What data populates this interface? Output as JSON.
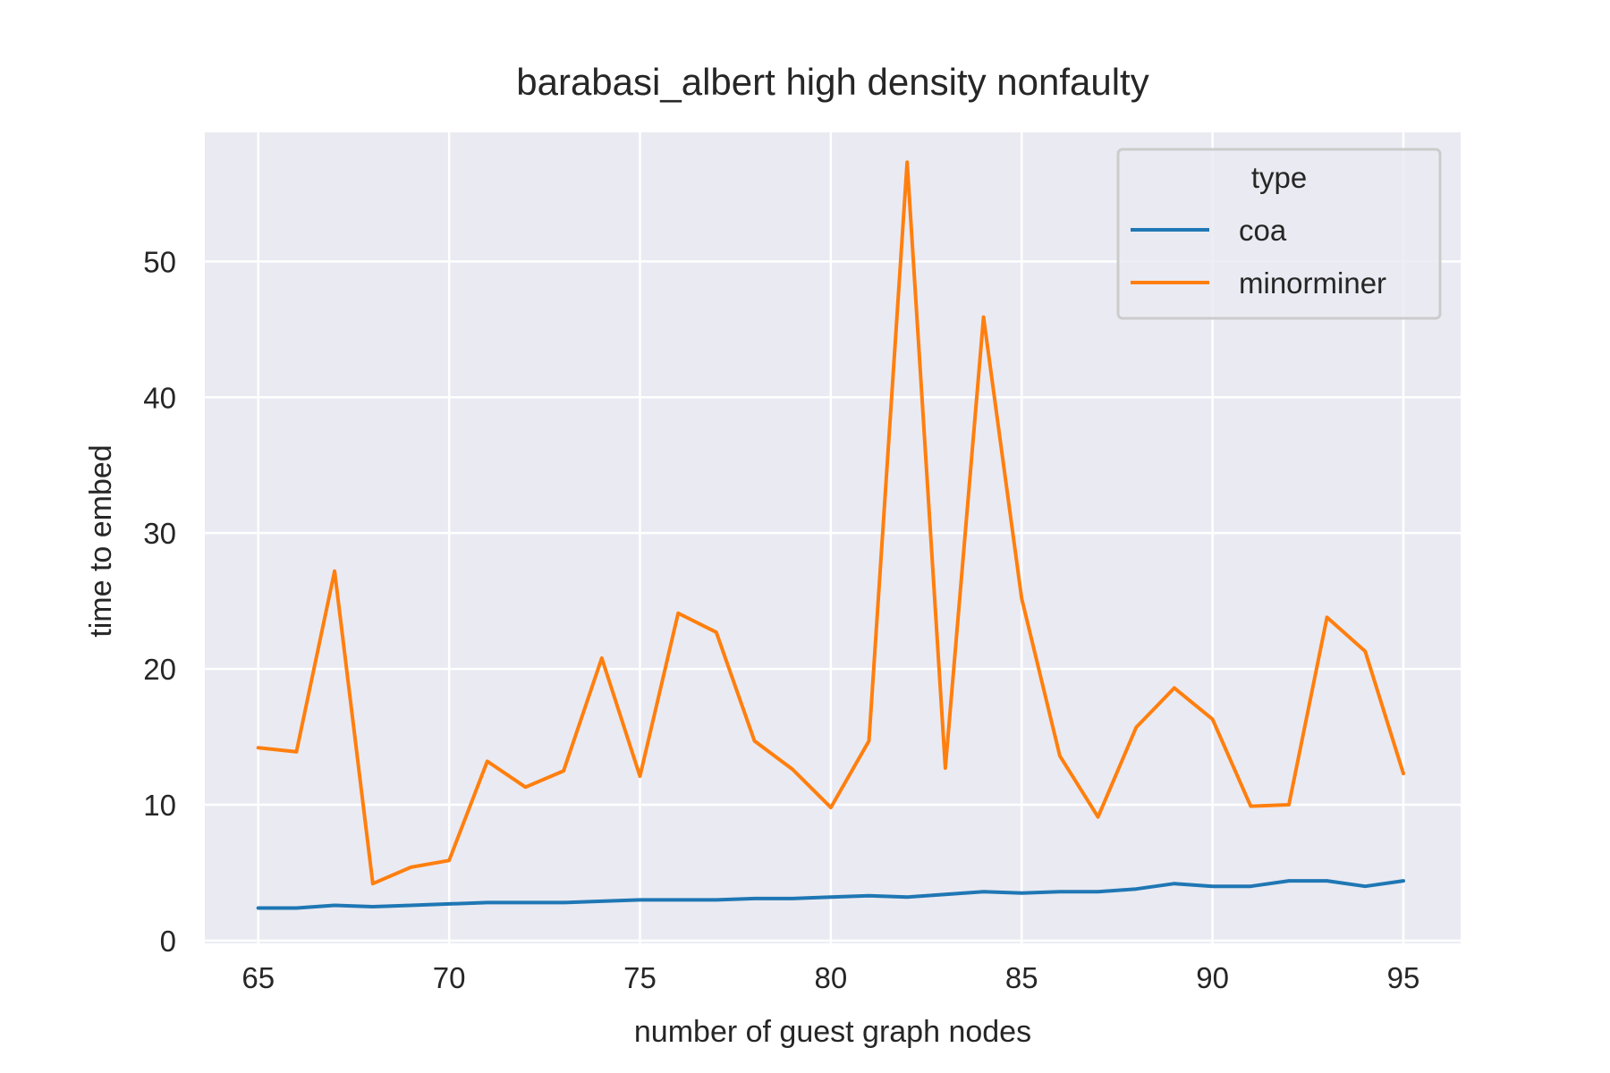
{
  "chart_data": {
    "type": "line",
    "title": "barabasi_albert high density nonfaulty",
    "xlabel": "number of guest graph nodes",
    "ylabel": "time to embed",
    "xlim": [
      63.6,
      96.5
    ],
    "ylim": [
      -0.2,
      59.5
    ],
    "xticks": [
      65,
      70,
      75,
      80,
      85,
      90,
      95
    ],
    "yticks": [
      0,
      10,
      20,
      30,
      40,
      50
    ],
    "grid": true,
    "legend": {
      "title": "type",
      "placement": "top-right"
    },
    "x": [
      65,
      66,
      67,
      68,
      69,
      70,
      71,
      72,
      73,
      74,
      75,
      76,
      77,
      78,
      79,
      80,
      81,
      82,
      83,
      84,
      85,
      86,
      87,
      88,
      89,
      90,
      91,
      92,
      93,
      94,
      95
    ],
    "series": [
      {
        "name": "coa",
        "color": "#1f77b4",
        "values": [
          2.4,
          2.4,
          2.6,
          2.5,
          2.6,
          2.7,
          2.8,
          2.8,
          2.8,
          2.9,
          3.0,
          3.0,
          3.0,
          3.1,
          3.1,
          3.2,
          3.3,
          3.2,
          3.4,
          3.6,
          3.5,
          3.6,
          3.6,
          3.8,
          4.2,
          4.0,
          4.0,
          4.4,
          4.4,
          4.0,
          4.4
        ]
      },
      {
        "name": "minorminer",
        "color": "#ff7f0e",
        "values": [
          14.2,
          13.9,
          27.2,
          4.2,
          5.4,
          5.9,
          13.2,
          11.3,
          12.5,
          20.8,
          12.1,
          24.1,
          22.7,
          14.7,
          12.6,
          9.8,
          14.7,
          57.3,
          12.7,
          45.9,
          25.2,
          13.6,
          9.1,
          15.7,
          18.6,
          16.3,
          9.9,
          10.0,
          23.8,
          21.3,
          12.3
        ]
      }
    ]
  }
}
